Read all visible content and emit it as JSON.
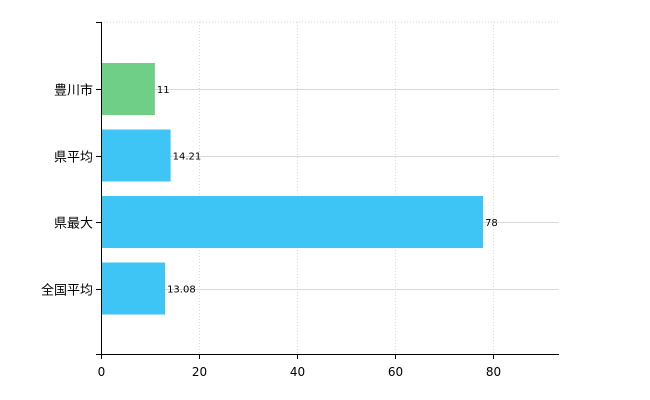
{
  "chart_data": {
    "type": "bar",
    "orientation": "horizontal",
    "categories": [
      "豊川市",
      "県平均",
      "県最大",
      "全国平均"
    ],
    "values": [
      11,
      14.21,
      78,
      13.08
    ],
    "value_labels": [
      "11",
      "14.21",
      "78",
      "13.08"
    ],
    "colors": [
      "#6fcf87",
      "#3ec4f5",
      "#3ec4f5",
      "#3ec4f5"
    ],
    "xticks": [
      "0",
      "20",
      "40",
      "60",
      "80"
    ],
    "xtick_values": [
      0,
      20,
      40,
      60,
      80
    ],
    "xlim": [
      0,
      93.5
    ],
    "grid": true,
    "title": "",
    "xlabel": "",
    "ylabel": ""
  }
}
